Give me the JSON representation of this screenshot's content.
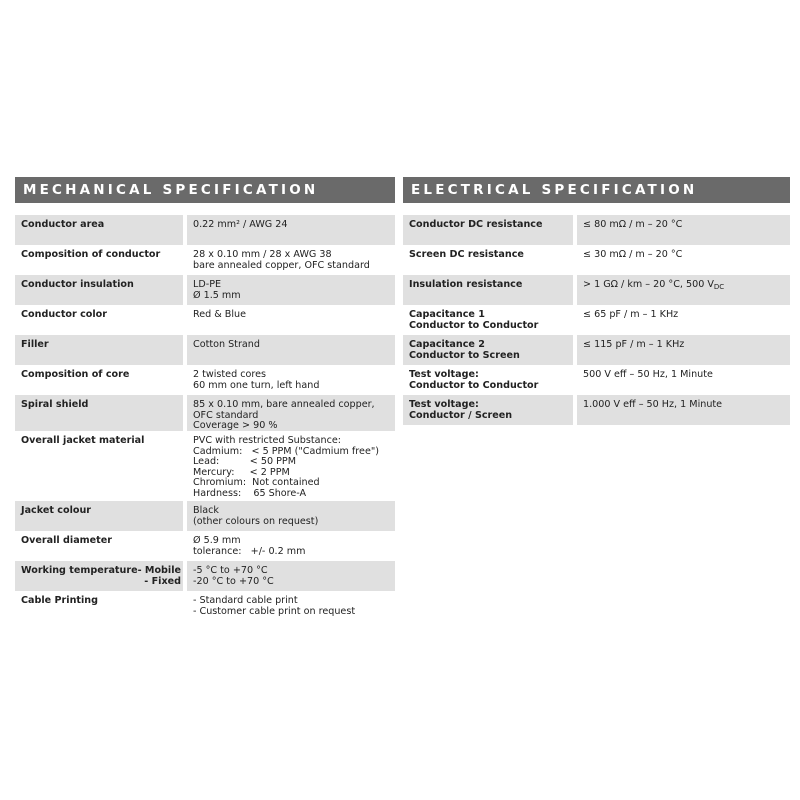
{
  "mechanical": {
    "title": "MECHANICAL SPECIFICATION",
    "rows": [
      {
        "label": "Conductor area",
        "value": "0.22 mm² / AWG 24"
      },
      {
        "label": "Composition of conductor",
        "value": "28 x 0.10 mm / 28 x AWG 38\nbare annealed copper, OFC standard"
      },
      {
        "label": "Conductor insulation",
        "value": "LD-PE\nØ 1.5 mm"
      },
      {
        "label": "Conductor color",
        "value": "Red & Blue"
      },
      {
        "label": "Filler",
        "value": "Cotton Strand"
      },
      {
        "label": "Composition of core",
        "value": "2 twisted cores\n60 mm one turn, left hand"
      },
      {
        "label": "Spiral shield",
        "value": "85 x 0.10 mm, bare annealed copper,\nOFC standard\nCoverage > 90 %"
      },
      {
        "label": "Overall jacket material",
        "value": "PVC with restricted Substance:\nCadmium:   < 5 PPM (\"Cadmium free\")\nLead:          < 50 PPM\nMercury:     < 2 PPM\nChromium:  Not contained\nHardness:    65 Shore-A"
      },
      {
        "label": "Jacket colour",
        "value": "Black\n(other colours on request)"
      },
      {
        "label": "Overall diameter",
        "value": "Ø 5.9 mm\ntolerance:   +/- 0.2 mm"
      },
      {
        "label": "Working temperature",
        "label_mobile": "- Mobile",
        "label_fixed": "- Fixed",
        "value": "-5 °C to +70 °C\n-20 °C to +70 °C"
      },
      {
        "label": "Cable Printing",
        "value": "- Standard cable print\n- Customer cable print on request"
      }
    ]
  },
  "electrical": {
    "title": "ELECTRICAL SPECIFICATION",
    "rows": [
      {
        "label": "Conductor DC resistance",
        "value": "≤ 80 mΩ / m – 20 °C"
      },
      {
        "label": "Screen DC resistance",
        "value": "≤ 30 mΩ / m – 20 °C"
      },
      {
        "label": "Insulation resistance",
        "value": "> 1 GΩ / km – 20 °C, 500 V",
        "value_sub": "DC"
      },
      {
        "label": "Capacitance 1\nConductor to Conductor",
        "value": "≤ 65 pF / m – 1 KHz"
      },
      {
        "label": "Capacitance 2\nConductor to Screen",
        "value": "≤ 115 pF / m – 1 KHz"
      },
      {
        "label": "Test voltage:\nConductor to Conductor",
        "value": "500 V eff – 50 Hz, 1 Minute"
      },
      {
        "label": "Test voltage:\nConductor / Screen",
        "value": "1.000 V eff – 50 Hz, 1 Minute"
      }
    ]
  }
}
